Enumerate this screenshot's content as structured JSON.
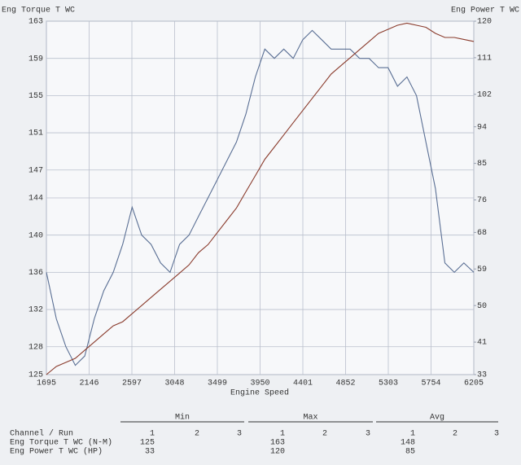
{
  "chart_data": {
    "type": "line",
    "x_label": "Engine Speed",
    "x": [
      1695,
      1800,
      1900,
      2000,
      2100,
      2200,
      2300,
      2400,
      2500,
      2600,
      2700,
      2800,
      2900,
      3000,
      3100,
      3200,
      3300,
      3400,
      3500,
      3600,
      3700,
      3800,
      3900,
      4000,
      4100,
      4200,
      4300,
      4400,
      4500,
      4600,
      4700,
      4800,
      4900,
      5000,
      5100,
      5200,
      5300,
      5400,
      5500,
      5600,
      5700,
      5800,
      5900,
      6000,
      6100,
      6205
    ],
    "series": [
      {
        "name": "Eng Torque T WC",
        "color": "#5a6f94",
        "values": [
          136,
          131,
          128,
          126,
          127,
          131,
          134,
          136,
          139,
          143,
          140,
          139,
          137,
          136,
          139,
          140,
          142,
          144,
          146,
          148,
          150,
          153,
          157,
          160,
          159,
          160,
          159,
          161,
          162,
          161,
          160,
          160,
          160,
          159,
          159,
          158,
          158,
          156,
          157,
          155,
          150,
          145,
          137,
          136,
          137,
          136
        ]
      },
      {
        "name": "Eng Power T WC",
        "color": "#8a3b2c",
        "axis": "y2",
        "values": [
          33,
          35,
          36,
          37,
          39,
          41,
          43,
          45,
          46,
          48,
          50,
          52,
          54,
          56,
          58,
          60,
          63,
          65,
          68,
          71,
          74,
          78,
          82,
          86,
          89,
          92,
          95,
          98,
          101,
          104,
          107,
          109,
          111,
          113,
          115,
          117,
          118,
          119,
          119.5,
          119,
          118.5,
          117,
          116,
          116,
          115.5,
          115
        ]
      }
    ],
    "xlim": [
      1695,
      6205
    ],
    "xticks": [
      1695,
      2146,
      2597,
      3048,
      3499,
      3950,
      4401,
      4852,
      5303,
      5754,
      6205
    ],
    "ylim": [
      125,
      163
    ],
    "yticks": [
      125,
      128,
      132,
      136,
      140,
      144,
      147,
      151,
      155,
      159,
      163
    ],
    "y2lim": [
      33,
      120
    ],
    "y2ticks": [
      33,
      41,
      50,
      59,
      68,
      76,
      85,
      94,
      102,
      111,
      120
    ],
    "grid": true
  },
  "table": {
    "header": "Channel / Run",
    "groups": [
      "Min",
      "Max",
      "Avg"
    ],
    "runs": [
      "1",
      "2",
      "3"
    ],
    "rows": [
      {
        "channel": "Eng Torque T WC (N-M)",
        "values": [
          "125",
          "163",
          "148"
        ]
      },
      {
        "channel": "Eng Power T WC (HP)",
        "values": [
          "33",
          "120",
          "85"
        ]
      }
    ]
  }
}
